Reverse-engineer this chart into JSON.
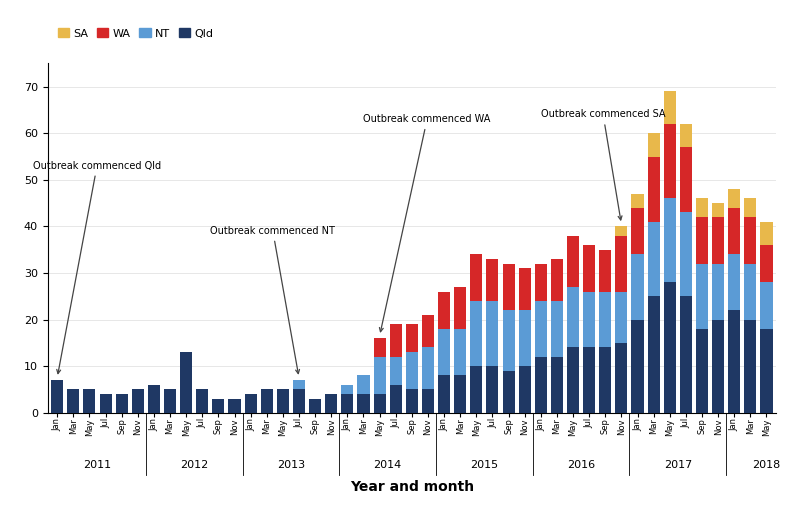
{
  "colors": {
    "Qld": "#1f3864",
    "NT": "#5b9bd5",
    "WA": "#d62728",
    "SA": "#e8b84b"
  },
  "months": [
    "Jan",
    "Mar",
    "May",
    "Jul",
    "Sep",
    "Nov",
    "Jan",
    "Mar",
    "May",
    "Jul",
    "Sep",
    "Nov",
    "Jan",
    "Mar",
    "May",
    "Jul",
    "Sep",
    "Nov",
    "Jan",
    "Mar",
    "May",
    "Jul",
    "Sep",
    "Nov",
    "Jan",
    "Mar",
    "May",
    "Jul",
    "Sep",
    "Nov",
    "Jan",
    "Mar",
    "May",
    "Jul",
    "Sep",
    "Nov",
    "Jan",
    "Mar",
    "May",
    "Jul",
    "Sep",
    "Nov",
    "Jan",
    "Mar",
    "May"
  ],
  "Qld": [
    7,
    5,
    5,
    4,
    4,
    5,
    6,
    5,
    13,
    5,
    3,
    3,
    4,
    5,
    5,
    5,
    3,
    4,
    4,
    4,
    4,
    6,
    5,
    5,
    8,
    8,
    10,
    10,
    9,
    10,
    12,
    12,
    14,
    14,
    14,
    15,
    20,
    25,
    28,
    25,
    18,
    20,
    22,
    20,
    18
  ],
  "NT": [
    0,
    0,
    0,
    0,
    0,
    0,
    0,
    0,
    0,
    0,
    0,
    0,
    0,
    0,
    0,
    2,
    0,
    0,
    2,
    4,
    8,
    6,
    8,
    9,
    10,
    10,
    14,
    14,
    13,
    12,
    12,
    12,
    13,
    12,
    12,
    11,
    14,
    16,
    18,
    18,
    14,
    12,
    12,
    12,
    10
  ],
  "WA": [
    0,
    0,
    0,
    0,
    0,
    0,
    0,
    0,
    0,
    0,
    0,
    0,
    0,
    0,
    0,
    0,
    0,
    0,
    0,
    0,
    4,
    7,
    6,
    7,
    8,
    9,
    10,
    9,
    10,
    9,
    8,
    9,
    11,
    10,
    9,
    12,
    10,
    14,
    16,
    14,
    10,
    10,
    10,
    10,
    8
  ],
  "SA": [
    0,
    0,
    0,
    0,
    0,
    0,
    0,
    0,
    0,
    0,
    0,
    0,
    0,
    0,
    0,
    0,
    0,
    0,
    0,
    0,
    0,
    0,
    0,
    0,
    0,
    0,
    0,
    0,
    0,
    0,
    0,
    0,
    0,
    0,
    0,
    2,
    3,
    5,
    7,
    5,
    4,
    3,
    4,
    4,
    5
  ],
  "year_positions": [
    2.5,
    8.5,
    14.5,
    20.5,
    26.5,
    32.5,
    38.5,
    44.0
  ],
  "year_labels": [
    "2011",
    "2012",
    "2013",
    "2014",
    "2015",
    "2016",
    "2017",
    "2018"
  ],
  "year_dividers": [
    5.5,
    11.5,
    17.5,
    23.5,
    29.5,
    35.5,
    41.5
  ],
  "xlabel": "Year and month",
  "background_color": "#ffffff",
  "bar_width": 0.75,
  "ylim": [
    0,
    75
  ]
}
